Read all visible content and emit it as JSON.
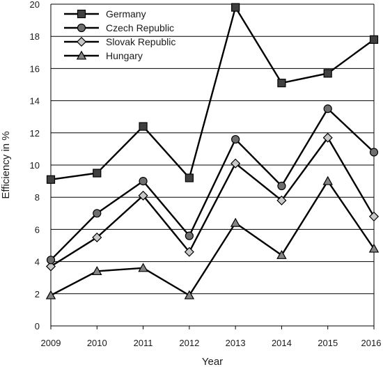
{
  "chart_data": {
    "type": "line",
    "title": "",
    "xlabel": "Year",
    "ylabel": "Efficiency in %",
    "categories": [
      "2009",
      "2010",
      "2011",
      "2012",
      "2013",
      "2014",
      "2015",
      "2016"
    ],
    "ylim": [
      0,
      20
    ],
    "yticks": [
      "0",
      "2",
      "4",
      "6",
      "8",
      "10",
      "12",
      "14",
      "16",
      "18",
      "20"
    ],
    "grid": "horizontal",
    "legend_position": "top-left",
    "series": [
      {
        "name": "Germany",
        "marker": "square",
        "color": "#404040",
        "values": [
          9.1,
          9.5,
          12.4,
          9.2,
          19.8,
          15.1,
          15.7,
          17.8
        ]
      },
      {
        "name": "Czech Republic",
        "marker": "circle",
        "color": "#6e6e6e",
        "values": [
          4.1,
          7.0,
          9.0,
          5.6,
          11.6,
          8.7,
          13.5,
          10.8
        ]
      },
      {
        "name": "Slovak Republic",
        "marker": "diamond",
        "color": "#c8c8c8",
        "values": [
          3.7,
          5.5,
          8.1,
          4.6,
          10.1,
          7.8,
          11.7,
          6.8
        ]
      },
      {
        "name": "Hungary",
        "marker": "triangle",
        "color": "#858585",
        "values": [
          1.9,
          3.4,
          3.6,
          1.9,
          6.4,
          4.4,
          9.0,
          4.8
        ]
      }
    ]
  }
}
